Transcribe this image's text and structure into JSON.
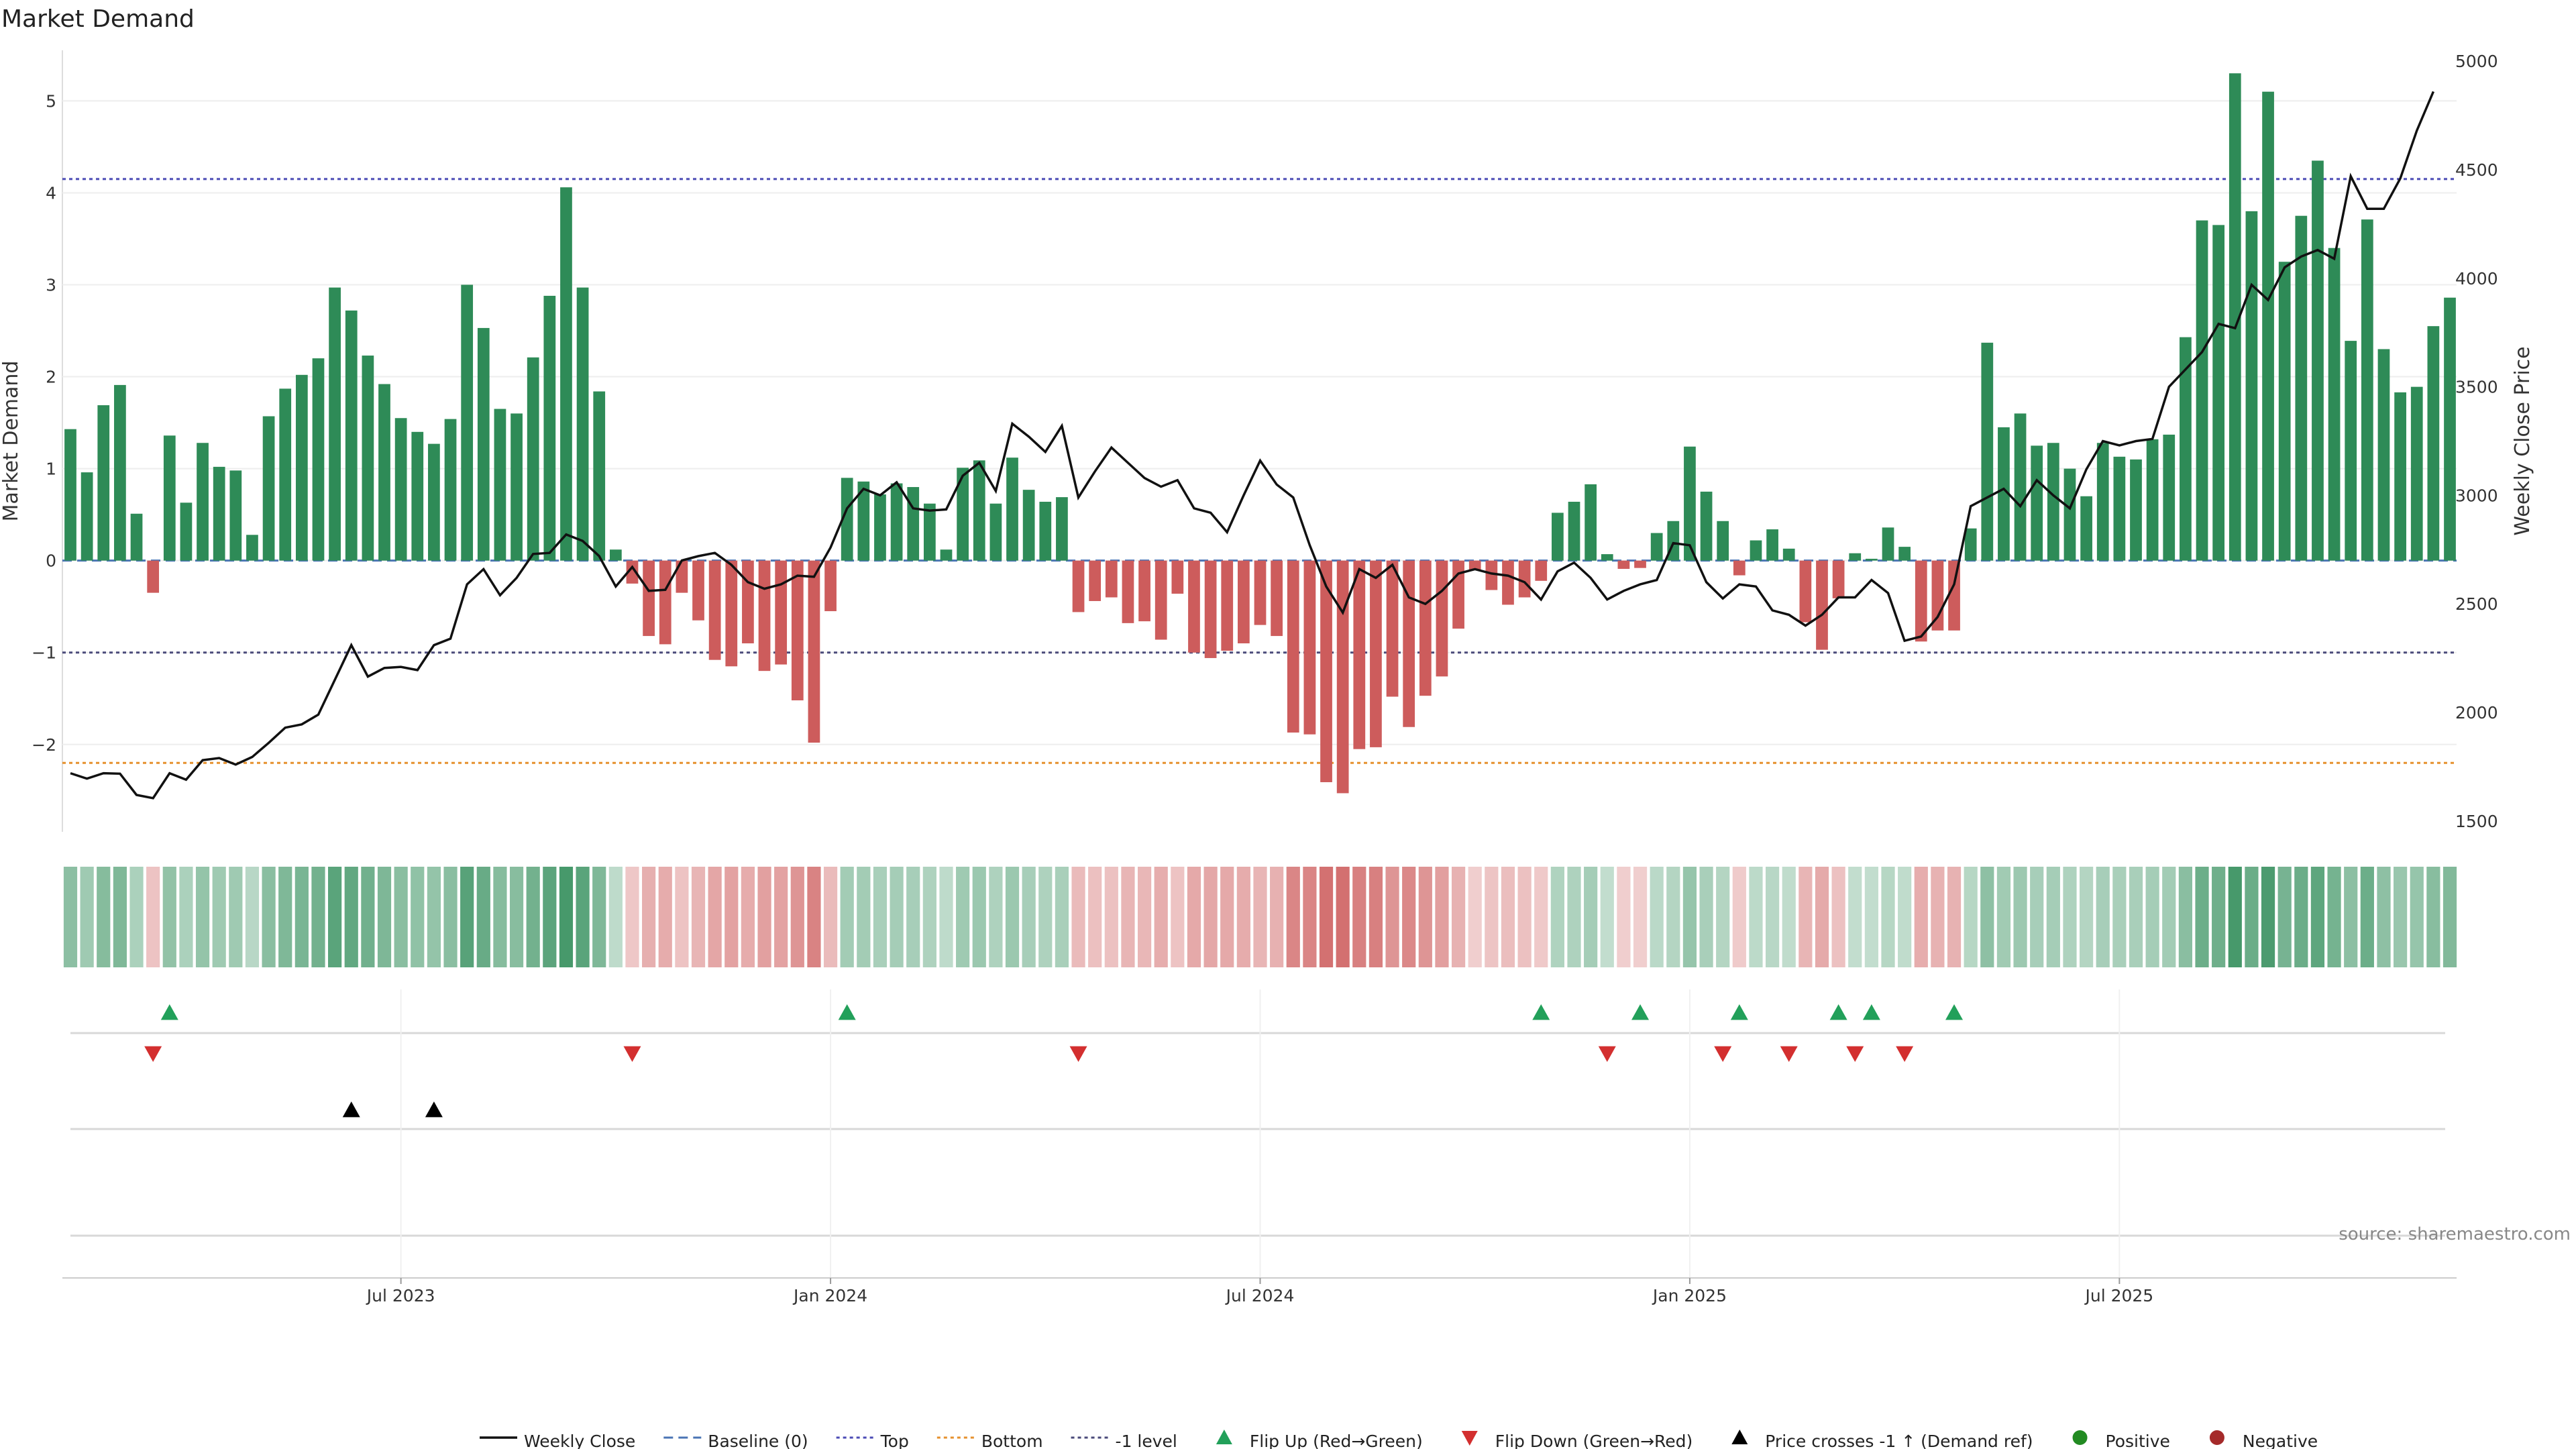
{
  "chart_data": {
    "type": "bar",
    "title": "Market Demand",
    "ylabel": "Market Demand",
    "y2label": "Weekly Close Price",
    "ylim": [
      -2.95,
      5.55
    ],
    "y2lim": [
      1450,
      5050
    ],
    "yticks": [
      -2,
      -1,
      0,
      1,
      2,
      3,
      4,
      5
    ],
    "y2ticks": [
      1500,
      2000,
      2500,
      3000,
      3500,
      4000,
      4500,
      5000
    ],
    "xticks": [
      "Jul 2023",
      "Jan 2024",
      "Jul 2024",
      "Jan 2025",
      "Jul 2025"
    ],
    "xtick_weeks": [
      20,
      46,
      72,
      98,
      124
    ],
    "reference_lines": {
      "top": 4.15,
      "bottom": -2.2,
      "minus_one": -1,
      "baseline": 0
    },
    "demand": [
      1.43,
      0.96,
      1.69,
      1.91,
      0.51,
      -0.35,
      1.36,
      0.63,
      1.28,
      1.02,
      0.98,
      0.28,
      1.57,
      1.87,
      2.02,
      2.2,
      2.97,
      2.72,
      2.23,
      1.92,
      1.55,
      1.4,
      1.27,
      1.54,
      3.0,
      2.53,
      1.65,
      1.6,
      2.21,
      2.88,
      4.06,
      2.97,
      1.84,
      0.12,
      -0.25,
      -0.82,
      -0.91,
      -0.35,
      -0.65,
      -1.08,
      -1.15,
      -0.9,
      -1.2,
      -1.13,
      -1.52,
      -1.98,
      -0.55,
      0.9,
      0.86,
      0.72,
      0.84,
      0.8,
      0.62,
      0.12,
      1.01,
      1.09,
      0.62,
      1.12,
      0.77,
      0.64,
      0.69,
      -0.56,
      -0.44,
      -0.4,
      -0.68,
      -0.66,
      -0.86,
      -0.36,
      -1.0,
      -1.06,
      -0.98,
      -0.9,
      -0.7,
      -0.82,
      -1.87,
      -1.89,
      -2.41,
      -2.53,
      -2.05,
      -2.03,
      -1.48,
      -1.81,
      -1.47,
      -1.26,
      -0.74,
      -0.1,
      -0.32,
      -0.48,
      -0.4,
      -0.22,
      0.52,
      0.64,
      0.83,
      0.07,
      -0.09,
      -0.08,
      0.3,
      0.43,
      1.24,
      0.75,
      0.43,
      -0.16,
      0.22,
      0.34,
      0.13,
      -0.67,
      -0.97,
      -0.41,
      0.08,
      0.02,
      0.36,
      0.15,
      -0.88,
      -0.76,
      -0.76,
      0.35,
      2.37,
      1.45,
      1.6,
      1.25,
      1.28,
      1.0,
      0.7,
      1.28,
      1.13,
      1.1,
      1.32,
      1.37,
      2.43,
      3.7,
      3.65,
      5.3,
      3.8,
      5.1,
      3.25,
      3.75,
      4.35,
      3.4,
      2.39,
      3.71,
      2.3,
      1.83,
      1.89,
      2.55,
      2.86
    ],
    "close": [
      1720,
      1695,
      1720,
      1718,
      1620,
      1605,
      1720,
      1690,
      1780,
      1790,
      1760,
      1795,
      1860,
      1930,
      1945,
      1990,
      2150,
      2310,
      2165,
      2205,
      2210,
      2195,
      2310,
      2340,
      2590,
      2660,
      2540,
      2620,
      2730,
      2735,
      2820,
      2790,
      2720,
      2580,
      2670,
      2560,
      2565,
      2700,
      2720,
      2735,
      2680,
      2600,
      2570,
      2590,
      2630,
      2625,
      2760,
      2940,
      3030,
      3000,
      3060,
      2940,
      2930,
      2935,
      3090,
      3150,
      3020,
      3330,
      3270,
      3200,
      3320,
      2990,
      3110,
      3220,
      3150,
      3080,
      3040,
      3070,
      2940,
      2920,
      2830,
      3000,
      3160,
      3050,
      2990,
      2770,
      2580,
      2460,
      2660,
      2620,
      2680,
      2530,
      2500,
      2560,
      2640,
      2660,
      2640,
      2630,
      2600,
      2520,
      2650,
      2690,
      2620,
      2520,
      2560,
      2590,
      2610,
      2780,
      2770,
      2600,
      2525,
      2590,
      2580,
      2470,
      2450,
      2400,
      2450,
      2530,
      2530,
      2610,
      2550,
      2330,
      2350,
      2440,
      2590,
      2950,
      2990,
      3030,
      2950,
      3070,
      3000,
      2940,
      3120,
      3250,
      3230,
      3250,
      3260,
      3500,
      3580,
      3660,
      3790,
      3770,
      3970,
      3900,
      4050,
      4100,
      4130,
      4090,
      4470,
      4320,
      4320,
      4460,
      4680,
      4860
    ],
    "color_strip": [
      0.45,
      0.3,
      0.5,
      0.55,
      0.2,
      0.15,
      0.4,
      0.2,
      0.38,
      0.3,
      0.3,
      0.1,
      0.46,
      0.55,
      0.6,
      0.65,
      0.85,
      0.78,
      0.66,
      0.56,
      0.46,
      0.42,
      0.38,
      0.46,
      0.86,
      0.74,
      0.5,
      0.48,
      0.65,
      0.83,
      1.0,
      0.85,
      0.55,
      0.05,
      0.1,
      0.35,
      0.38,
      0.15,
      0.28,
      0.45,
      0.48,
      0.38,
      0.5,
      0.48,
      0.62,
      0.8,
      0.24,
      0.27,
      0.26,
      0.22,
      0.25,
      0.24,
      0.19,
      0.05,
      0.3,
      0.33,
      0.19,
      0.34,
      0.23,
      0.19,
      0.21,
      0.23,
      0.18,
      0.17,
      0.28,
      0.27,
      0.36,
      0.15,
      0.42,
      0.44,
      0.41,
      0.38,
      0.29,
      0.34,
      0.77,
      0.78,
      0.99,
      1.0,
      0.84,
      0.84,
      0.61,
      0.75,
      0.61,
      0.52,
      0.31,
      0.04,
      0.13,
      0.2,
      0.17,
      0.09,
      0.16,
      0.19,
      0.25,
      0.02,
      0.04,
      0.03,
      0.09,
      0.13,
      0.37,
      0.22,
      0.13,
      0.07,
      0.07,
      0.1,
      0.04,
      0.28,
      0.4,
      0.17,
      0.02,
      0.01,
      0.11,
      0.04,
      0.36,
      0.31,
      0.31,
      0.11,
      0.44,
      0.28,
      0.31,
      0.24,
      0.25,
      0.19,
      0.13,
      0.24,
      0.21,
      0.21,
      0.25,
      0.26,
      0.46,
      0.7,
      0.69,
      1.0,
      0.72,
      0.96,
      0.61,
      0.71,
      0.82,
      0.64,
      0.45,
      0.7,
      0.43,
      0.35,
      0.36,
      0.48,
      0.54
    ],
    "flip_up_weeks": [
      6,
      47,
      89,
      95,
      101,
      107,
      109,
      114
    ],
    "flip_down_weeks": [
      5,
      34,
      61,
      93,
      100,
      104,
      108,
      111
    ],
    "price_cross_weeks": [
      17,
      22
    ],
    "colors": {
      "positive_bar": "#2e8b57",
      "negative_bar": "#cd5c5c",
      "line": "#111111",
      "top": "#4b4bb5",
      "bottom": "#e6912e",
      "minus_one": "#4a4a7a",
      "baseline": "#4a74b4",
      "flip_up": "#22a05a",
      "flip_down": "#d32f2f",
      "cross": "#000000",
      "positive_dot": "#228b22",
      "negative_dot": "#a52a2a"
    },
    "legend": [
      {
        "label": "Weekly Close",
        "kind": "line"
      },
      {
        "label": "Baseline (0)",
        "kind": "dash"
      },
      {
        "label": "Top",
        "kind": "dot-top"
      },
      {
        "label": "Bottom",
        "kind": "dot-bottom"
      },
      {
        "label": "-1 level",
        "kind": "dot-minus"
      },
      {
        "label": "Flip Up (Red→Green)",
        "kind": "tri-up"
      },
      {
        "label": "Flip Down (Green→Red)",
        "kind": "tri-down"
      },
      {
        "label": "Price crosses -1 ↑ (Demand ref)",
        "kind": "tri-cross"
      },
      {
        "label": "Positive",
        "kind": "dot-pos"
      },
      {
        "label": "Negative",
        "kind": "dot-neg"
      }
    ],
    "source": "source: sharemaestro.com"
  }
}
